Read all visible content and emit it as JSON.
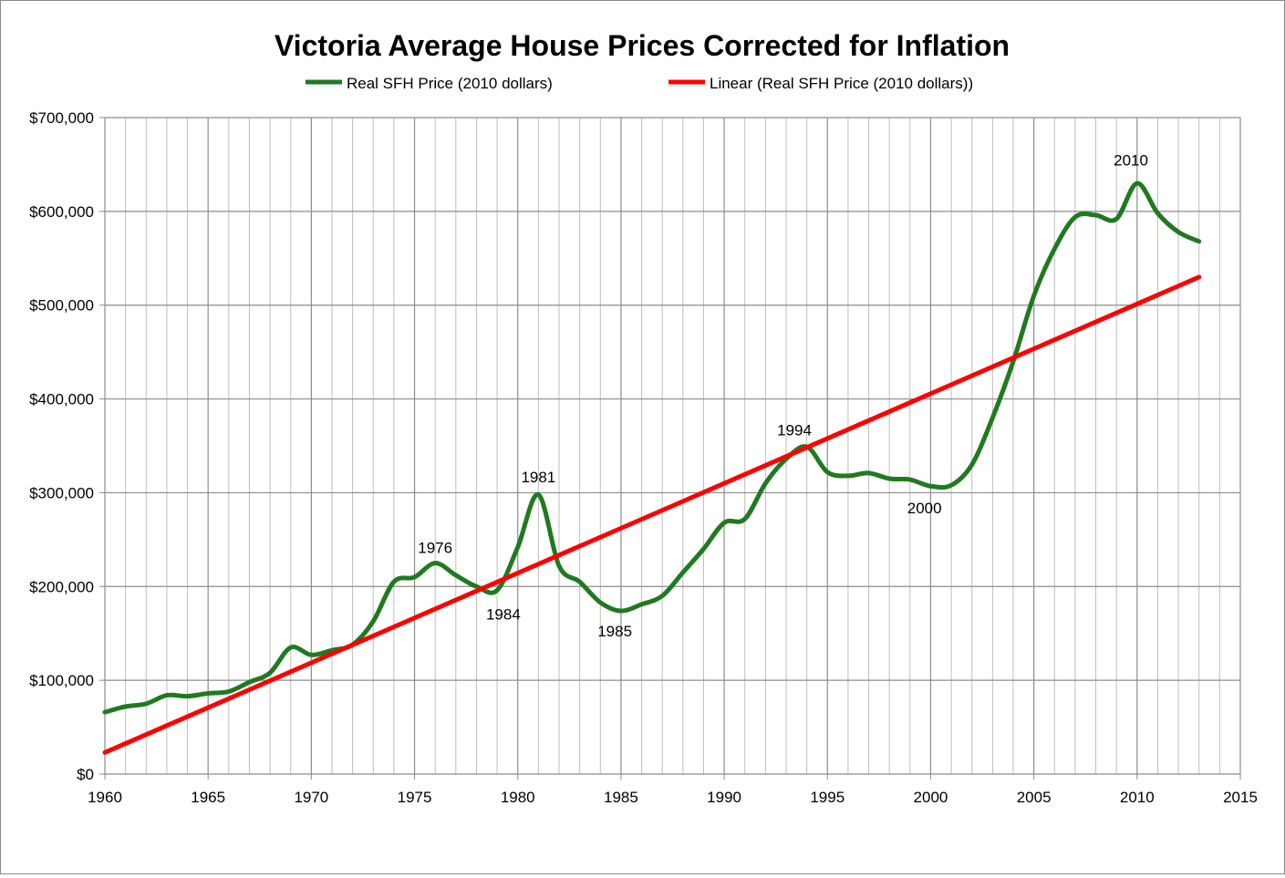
{
  "chart_data": {
    "type": "line",
    "title": "Victoria Average House Prices Corrected for Inflation",
    "xlabel": "",
    "ylabel": "",
    "xlim": [
      1960,
      2015
    ],
    "ylim": [
      0,
      700000
    ],
    "grid": true,
    "legend_position": "top",
    "x_ticks": [
      {
        "value": 1960,
        "label": "1960"
      },
      {
        "value": 1965,
        "label": "1965"
      },
      {
        "value": 1970,
        "label": "1970"
      },
      {
        "value": 1975,
        "label": "1975"
      },
      {
        "value": 1980,
        "label": "1980"
      },
      {
        "value": 1985,
        "label": "1985"
      },
      {
        "value": 1990,
        "label": "1990"
      },
      {
        "value": 1995,
        "label": "1995"
      },
      {
        "value": 2000,
        "label": "2000"
      },
      {
        "value": 2005,
        "label": "2005"
      },
      {
        "value": 2010,
        "label": "2010"
      },
      {
        "value": 2015,
        "label": "2015"
      }
    ],
    "y_ticks": [
      {
        "value": 0,
        "label": "$0"
      },
      {
        "value": 100000,
        "label": "$100,000"
      },
      {
        "value": 200000,
        "label": "$200,000"
      },
      {
        "value": 300000,
        "label": "$300,000"
      },
      {
        "value": 400000,
        "label": "$400,000"
      },
      {
        "value": 500000,
        "label": "$500,000"
      },
      {
        "value": 600000,
        "label": "$600,000"
      },
      {
        "value": 700000,
        "label": "$700,000"
      }
    ],
    "series": [
      {
        "name": "Real SFH Price (2010 dollars)",
        "color": "#1f7a1f",
        "x": [
          1960,
          1961,
          1962,
          1963,
          1964,
          1965,
          1966,
          1967,
          1968,
          1969,
          1970,
          1971,
          1972,
          1973,
          1974,
          1975,
          1976,
          1977,
          1978,
          1979,
          1980,
          1981,
          1982,
          1983,
          1984,
          1985,
          1986,
          1987,
          1988,
          1989,
          1990,
          1991,
          1992,
          1993,
          1994,
          1995,
          1996,
          1997,
          1998,
          1999,
          2000,
          2001,
          2002,
          2003,
          2004,
          2005,
          2006,
          2007,
          2008,
          2009,
          2010,
          2011,
          2012,
          2013
        ],
        "values": [
          66000,
          72000,
          75000,
          84000,
          83000,
          86000,
          88000,
          98000,
          108000,
          135000,
          127000,
          132000,
          138000,
          163000,
          205000,
          210000,
          225000,
          212000,
          200000,
          196000,
          242000,
          298000,
          222000,
          205000,
          183000,
          174000,
          181000,
          190000,
          215000,
          240000,
          268000,
          272000,
          310000,
          336000,
          349000,
          322000,
          318000,
          321000,
          315000,
          314000,
          307000,
          308000,
          330000,
          380000,
          440000,
          510000,
          560000,
          594000,
          596000,
          592000,
          630000,
          598000,
          578000,
          568000
        ]
      },
      {
        "name": "Linear (Real SFH Price (2010 dollars))",
        "color": "#ff0000",
        "x": [
          1960,
          2013
        ],
        "values": [
          23000,
          530000
        ]
      }
    ],
    "annotations": [
      {
        "label": "1976",
        "x": 1976,
        "y": 236000
      },
      {
        "label": "1981",
        "x": 1981,
        "y": 311000
      },
      {
        "label": "1984",
        "x": 1979.3,
        "y": 165000
      },
      {
        "label": "1985",
        "x": 1984.7,
        "y": 147000
      },
      {
        "label": "1994",
        "x": 1993.4,
        "y": 361000
      },
      {
        "label": "2000",
        "x": 1999.7,
        "y": 278000
      },
      {
        "label": "2010",
        "x": 2009.7,
        "y": 649000
      }
    ]
  }
}
